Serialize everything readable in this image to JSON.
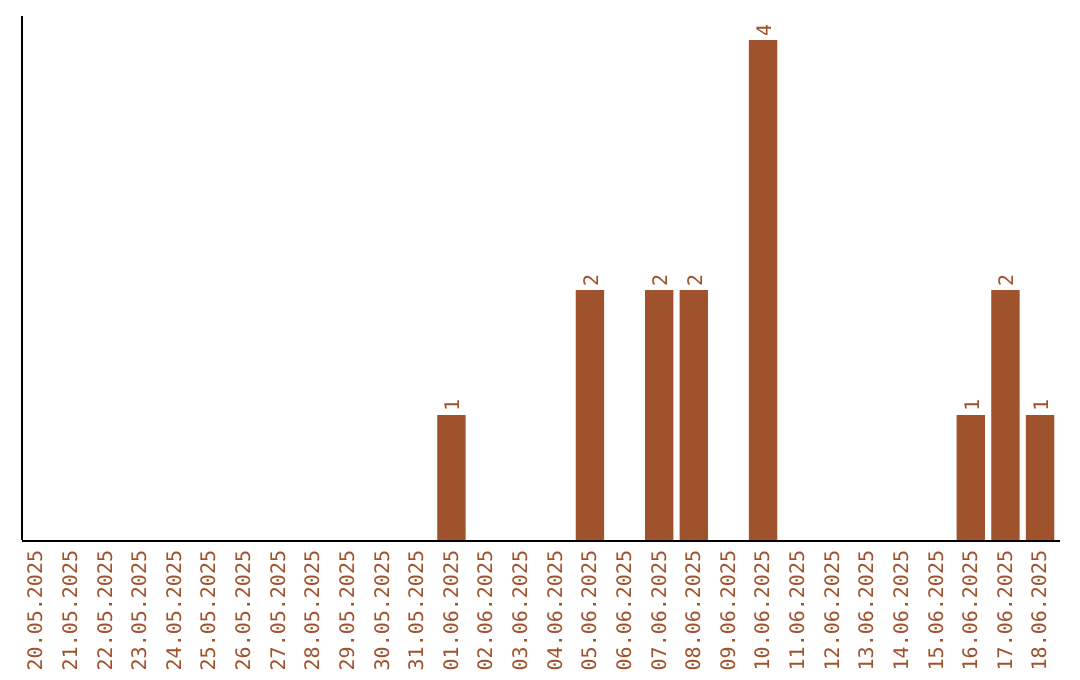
{
  "chart_data": {
    "type": "bar",
    "categories": [
      "20.05.2025",
      "21.05.2025",
      "22.05.2025",
      "23.05.2025",
      "24.05.2025",
      "25.05.2025",
      "26.05.2025",
      "27.05.2025",
      "28.05.2025",
      "29.05.2025",
      "30.05.2025",
      "31.05.2025",
      "01.06.2025",
      "02.06.2025",
      "03.06.2025",
      "04.06.2025",
      "05.06.2025",
      "06.06.2025",
      "07.06.2025",
      "08.06.2025",
      "09.06.2025",
      "10.06.2025",
      "11.06.2025",
      "12.06.2025",
      "13.06.2025",
      "14.06.2025",
      "15.06.2025",
      "16.06.2025",
      "17.06.2025",
      "18.06.2025"
    ],
    "values": [
      null,
      null,
      null,
      null,
      null,
      null,
      null,
      null,
      null,
      null,
      null,
      null,
      1,
      null,
      null,
      null,
      2,
      null,
      2,
      2,
      null,
      4,
      null,
      null,
      null,
      null,
      null,
      1,
      2,
      1
    ],
    "data_labels": true,
    "color": "#a0522d",
    "tick_labels": "x"
  }
}
